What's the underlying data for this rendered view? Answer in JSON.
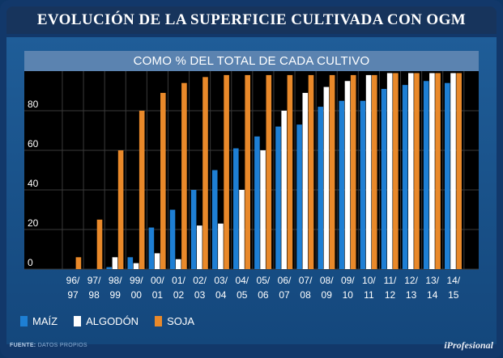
{
  "header": {
    "title": "EVOLUCIÓN DE LA SUPERFICIE CULTIVADA CON OGM"
  },
  "footer": {
    "source_label": "FUENTE:",
    "source_text": "DATOS PROPIOS",
    "brand": "iProfesional"
  },
  "colors": {
    "maiz": "#1e7fd4",
    "algodon": "#ffffff",
    "soja": "#e9892a",
    "background": "#12386a",
    "plot_bg": "#000000",
    "grid": "#3a3a3a"
  },
  "chart_data": {
    "type": "bar",
    "title": "COMO % DEL TOTAL DE CADA CULTIVO",
    "xlabel": "",
    "ylabel": "",
    "ylim": [
      0,
      100
    ],
    "yticks": [
      0,
      20,
      40,
      60,
      80
    ],
    "categories": [
      [
        "96/",
        "97"
      ],
      [
        "97/",
        "98"
      ],
      [
        "98/",
        "99"
      ],
      [
        "99/",
        "00"
      ],
      [
        "00/",
        "01"
      ],
      [
        "01/",
        "02"
      ],
      [
        "02/",
        "03"
      ],
      [
        "03/",
        "04"
      ],
      [
        "04/",
        "05"
      ],
      [
        "05/",
        "06"
      ],
      [
        "06/",
        "07"
      ],
      [
        "07/",
        "08"
      ],
      [
        "08/",
        "09"
      ],
      [
        "09/",
        "10"
      ],
      [
        "10/",
        "11"
      ],
      [
        "11/",
        "12"
      ],
      [
        "12/",
        "13"
      ],
      [
        "13/",
        "14"
      ],
      [
        "14/",
        "15"
      ]
    ],
    "series": [
      {
        "name": "MAÍZ",
        "color": "#1e7fd4",
        "values": [
          0,
          0,
          1,
          6,
          21,
          30,
          40,
          50,
          61,
          67,
          72,
          73,
          82,
          85,
          85,
          91,
          93,
          95,
          94
        ]
      },
      {
        "name": "ALGODÓN",
        "color": "#ffffff",
        "values": [
          0,
          0,
          6,
          3,
          8,
          5,
          22,
          23,
          40,
          60,
          80,
          89,
          92,
          95,
          98,
          99,
          99,
          99,
          99
        ]
      },
      {
        "name": "SOJA",
        "color": "#e9892a",
        "values": [
          6,
          25,
          60,
          80,
          89,
          94,
          97,
          98,
          98,
          98,
          98,
          98,
          98,
          98,
          98,
          99,
          99,
          99,
          99
        ]
      }
    ],
    "legend_position": "bottom-left"
  }
}
